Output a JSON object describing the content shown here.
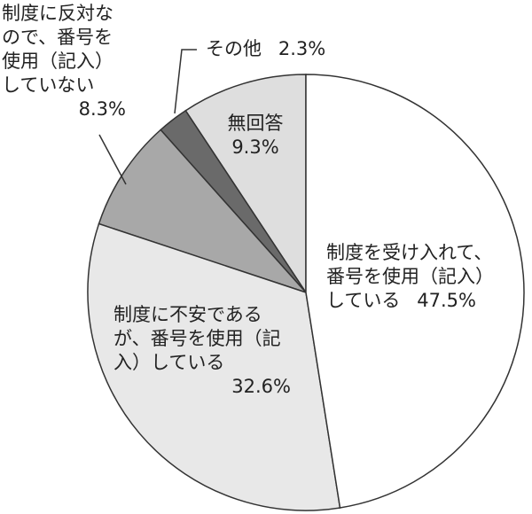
{
  "chart_data": {
    "type": "pie",
    "categories": [
      "制度を受け入れて、番号を使用（記入）している",
      "制度に不安であるが、番号を使用（記入）している",
      "制度に反対なので、番号を使用（記入）していない",
      "その他",
      "無回答"
    ],
    "values": [
      47.5,
      32.6,
      8.3,
      2.3,
      9.3
    ],
    "value_labels": [
      "47.5%",
      "32.6%",
      "8.3%",
      "2.3%",
      "9.3%"
    ],
    "colors": [
      "#ffffff",
      "#e8e8e8",
      "#a8a8a8",
      "#6a6a6a",
      "#dedede"
    ]
  }
}
